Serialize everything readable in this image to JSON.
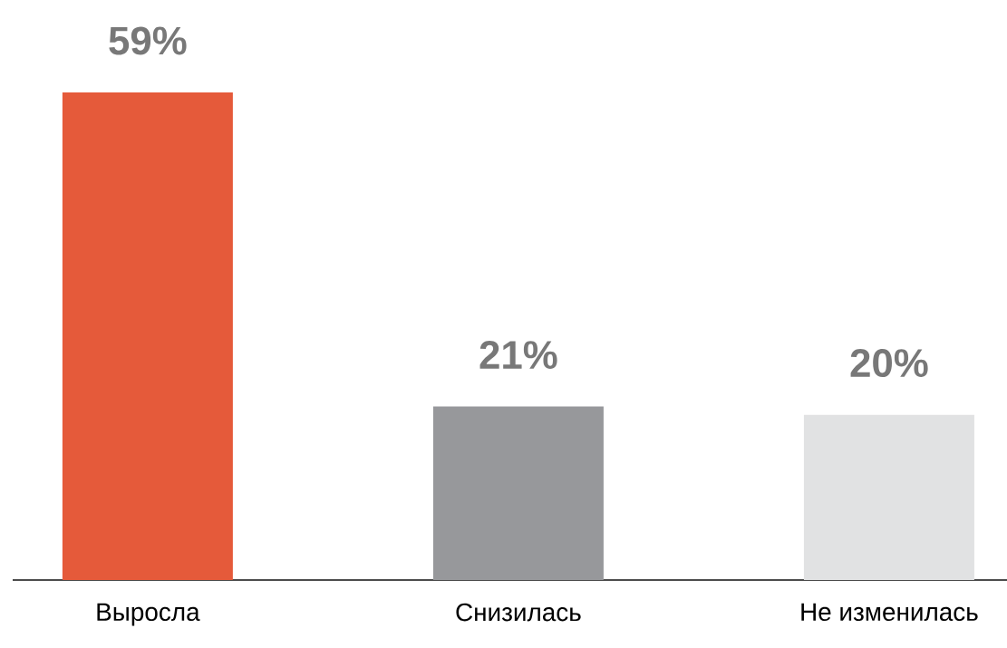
{
  "chart_data": {
    "type": "bar",
    "categories": [
      "Выросла",
      "Снизилась",
      "Не изменилась"
    ],
    "values": [
      59,
      21,
      20
    ],
    "colors": [
      "#e55a3a",
      "#97989b",
      "#e1e2e3"
    ],
    "value_labels": [
      "59%",
      "21%",
      "20%"
    ]
  }
}
